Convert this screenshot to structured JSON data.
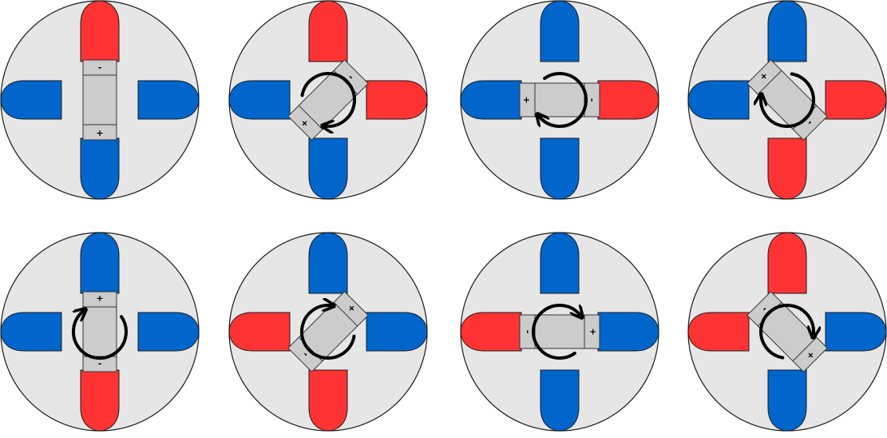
{
  "colors": {
    "background": "#ffffff",
    "disc_fill": "#e6e6e6",
    "disc_stroke": "#1a1a1a",
    "north_pole": "#ff3333",
    "south_pole": "#0066cc",
    "rotor_fill": "#cccccc",
    "arrow": "#000000"
  },
  "legend_signs": {
    "plus": "+",
    "minus": "-"
  },
  "panels": [
    {
      "id": "panel-1",
      "poles": {
        "top": "north",
        "bottom": "south",
        "left": "south",
        "right": "south"
      },
      "rotor_angle_deg": 0,
      "rotor_plus_end": "bottom",
      "arrow": "none"
    },
    {
      "id": "panel-2",
      "poles": {
        "top": "north",
        "bottom": "south",
        "left": "south",
        "right": "north"
      },
      "rotor_angle_deg": 45,
      "rotor_plus_end": "bottom",
      "arrow": "clockwise"
    },
    {
      "id": "panel-3",
      "poles": {
        "top": "south",
        "bottom": "south",
        "left": "south",
        "right": "north"
      },
      "rotor_angle_deg": 90,
      "rotor_plus_end": "bottom",
      "arrow": "clockwise"
    },
    {
      "id": "panel-4",
      "poles": {
        "top": "south",
        "bottom": "north",
        "left": "south",
        "right": "north"
      },
      "rotor_angle_deg": 135,
      "rotor_plus_end": "bottom",
      "arrow": "clockwise"
    },
    {
      "id": "panel-5",
      "poles": {
        "top": "south",
        "bottom": "north",
        "left": "south",
        "right": "south"
      },
      "rotor_angle_deg": 180,
      "rotor_plus_end": "bottom",
      "arrow": "clockwise"
    },
    {
      "id": "panel-6",
      "poles": {
        "top": "south",
        "bottom": "north",
        "left": "north",
        "right": "south"
      },
      "rotor_angle_deg": 225,
      "rotor_plus_end": "bottom",
      "arrow": "clockwise"
    },
    {
      "id": "panel-7",
      "poles": {
        "top": "south",
        "bottom": "south",
        "left": "north",
        "right": "south"
      },
      "rotor_angle_deg": 270,
      "rotor_plus_end": "bottom",
      "arrow": "clockwise"
    },
    {
      "id": "panel-8",
      "poles": {
        "top": "north",
        "bottom": "south",
        "left": "north",
        "right": "south"
      },
      "rotor_angle_deg": 315,
      "rotor_plus_end": "bottom",
      "arrow": "clockwise"
    }
  ]
}
